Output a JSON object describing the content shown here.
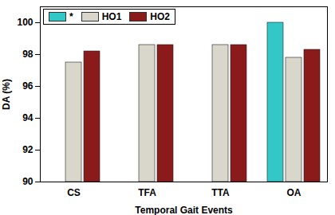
{
  "chart_data": {
    "type": "bar",
    "categories": [
      "CS",
      "TFA",
      "TTA",
      "OA"
    ],
    "series": [
      {
        "name": "*",
        "color": "#33c7c7",
        "values": [
          null,
          null,
          null,
          100
        ]
      },
      {
        "name": "HO1",
        "color": "#d9d6cc",
        "values": [
          97.5,
          98.6,
          98.6,
          97.8
        ]
      },
      {
        "name": "HO2",
        "color": "#8b1a1a",
        "values": [
          98.2,
          98.6,
          98.6,
          98.3
        ]
      }
    ],
    "xlabel": "Temporal Gait Events",
    "ylabel": "DA (%)",
    "ylim": [
      90,
      101
    ],
    "yticks": [
      90,
      92,
      94,
      96,
      98,
      100
    ],
    "legend": "upper left"
  }
}
